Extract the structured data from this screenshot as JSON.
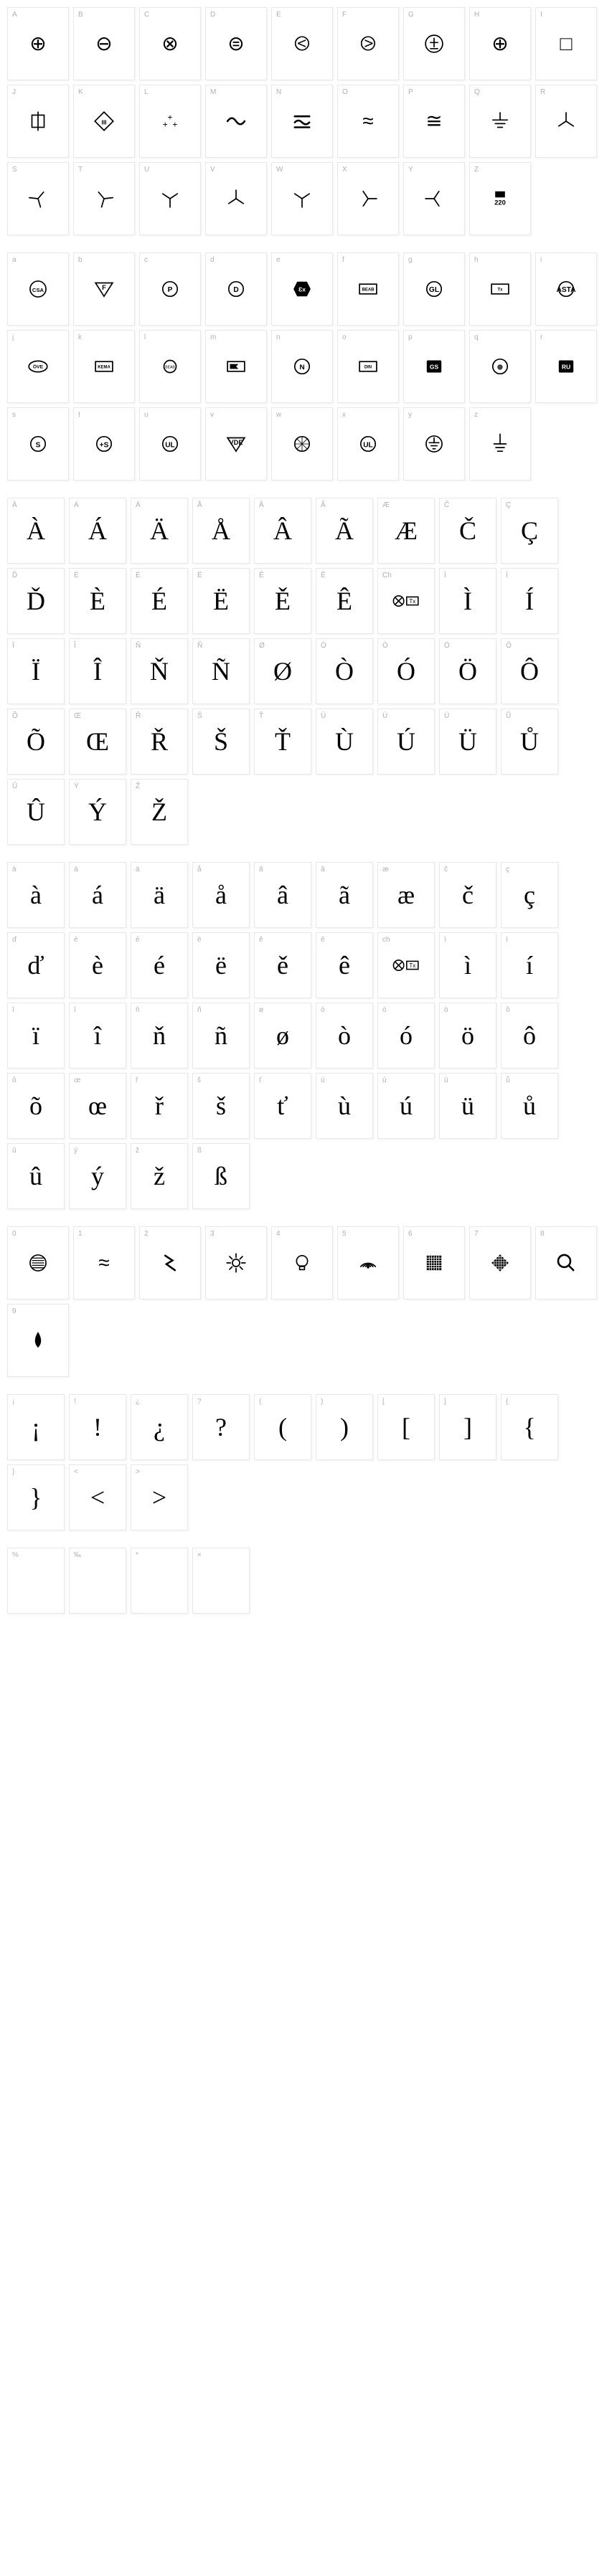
{
  "sections": [
    {
      "id": "uppercase-symbols",
      "cardSize": "small",
      "cards": [
        {
          "label": "A",
          "glyph": "⊕",
          "type": "symbol"
        },
        {
          "label": "B",
          "glyph": "⊖",
          "type": "symbol"
        },
        {
          "label": "C",
          "glyph": "⊗",
          "type": "symbol"
        },
        {
          "label": "D",
          "glyph": "⊜",
          "type": "symbol"
        },
        {
          "label": "E",
          "glyph": "⧀",
          "type": "symbol"
        },
        {
          "label": "F",
          "glyph": "⧁",
          "type": "symbol"
        },
        {
          "label": "G",
          "glyph": "±",
          "type": "circled"
        },
        {
          "label": "H",
          "glyph": "⊕",
          "type": "symbol"
        },
        {
          "label": "I",
          "glyph": "□",
          "type": "symbol"
        },
        {
          "label": "J",
          "glyph": "⊞",
          "type": "box-line"
        },
        {
          "label": "K",
          "glyph": "◈",
          "type": "diamond"
        },
        {
          "label": "L",
          "glyph": "⁺⁺⁺",
          "type": "plus-cluster"
        },
        {
          "label": "M",
          "glyph": "∼",
          "type": "wave"
        },
        {
          "label": "N",
          "glyph": "≂",
          "type": "wave-bars"
        },
        {
          "label": "O",
          "glyph": "≈",
          "type": "symbol"
        },
        {
          "label": "P",
          "glyph": "≅",
          "type": "symbol"
        },
        {
          "label": "Q",
          "glyph": "⏚",
          "type": "ground"
        },
        {
          "label": "R",
          "glyph": "⅄",
          "type": "wye1"
        },
        {
          "label": "S",
          "glyph": "⅄",
          "type": "wye2"
        },
        {
          "label": "T",
          "glyph": "⅄",
          "type": "wye3"
        },
        {
          "label": "U",
          "glyph": "⅄",
          "type": "wye4"
        },
        {
          "label": "V",
          "glyph": "Y",
          "type": "tri"
        },
        {
          "label": "W",
          "glyph": "⅄",
          "type": "tri2"
        },
        {
          "label": "X",
          "glyph": "⅄",
          "type": "tri3"
        },
        {
          "label": "Y",
          "glyph": "≺",
          "type": "tri4"
        },
        {
          "label": "Z",
          "glyph": "220",
          "type": "label-220"
        }
      ]
    },
    {
      "id": "lowercase-badges",
      "cardSize": "small",
      "cards": [
        {
          "label": "a",
          "glyph": "CSA",
          "type": "badge"
        },
        {
          "label": "b",
          "glyph": "F",
          "type": "badge-tri"
        },
        {
          "label": "c",
          "glyph": "P",
          "type": "badge-circle"
        },
        {
          "label": "d",
          "glyph": "D",
          "type": "badge-circle"
        },
        {
          "label": "e",
          "glyph": "Ɛx",
          "type": "badge-hex"
        },
        {
          "label": "f",
          "glyph": "BEAB",
          "type": "badge-rect"
        },
        {
          "label": "g",
          "glyph": "GL",
          "type": "badge-circle"
        },
        {
          "label": "h",
          "glyph": "Tx",
          "type": "badge-rect"
        },
        {
          "label": "i",
          "glyph": "ASTA",
          "type": "badge-circle"
        },
        {
          "label": "j",
          "glyph": "ÖVE",
          "type": "badge-oval"
        },
        {
          "label": "k",
          "glyph": "KEMA",
          "type": "badge-rect"
        },
        {
          "label": "l",
          "glyph": "BEAB",
          "type": "badge-small"
        },
        {
          "label": "m",
          "glyph": "◣",
          "type": "badge-flag"
        },
        {
          "label": "n",
          "glyph": "N",
          "type": "badge-circle"
        },
        {
          "label": "o",
          "glyph": "DIN",
          "type": "badge-rect"
        },
        {
          "label": "p",
          "glyph": "GS",
          "type": "badge-black"
        },
        {
          "label": "q",
          "glyph": "⊕",
          "type": "badge-circle"
        },
        {
          "label": "r",
          "glyph": "RU",
          "type": "badge-black"
        },
        {
          "label": "s",
          "glyph": "S",
          "type": "badge-circle"
        },
        {
          "label": "t",
          "glyph": "+S",
          "type": "badge-circle"
        },
        {
          "label": "u",
          "glyph": "UL",
          "type": "badge-circle"
        },
        {
          "label": "v",
          "glyph": "VDE",
          "type": "badge-tri"
        },
        {
          "label": "w",
          "glyph": "⊛",
          "type": "badge-wheel"
        },
        {
          "label": "x",
          "glyph": "UL",
          "type": "badge-circle"
        },
        {
          "label": "y",
          "glyph": "⏚",
          "type": "badge-ground"
        },
        {
          "label": "z",
          "glyph": "⏚",
          "type": "ground-alt"
        }
      ]
    },
    {
      "id": "accented-upper",
      "cardSize": "wide",
      "cards": [
        {
          "label": "À",
          "glyph": "À"
        },
        {
          "label": "Á",
          "glyph": "Á"
        },
        {
          "label": "Ä",
          "glyph": "Ä"
        },
        {
          "label": "Å",
          "glyph": "Å"
        },
        {
          "label": "Â",
          "glyph": "Â"
        },
        {
          "label": "Ã",
          "glyph": "Ã"
        },
        {
          "label": "Æ",
          "glyph": "Æ"
        },
        {
          "label": "Č",
          "glyph": "Č"
        },
        {
          "label": "Ç",
          "glyph": "Ç"
        },
        {
          "label": "Ď",
          "glyph": "Ď"
        },
        {
          "label": "È",
          "glyph": "È"
        },
        {
          "label": "É",
          "glyph": "É"
        },
        {
          "label": "Ë",
          "glyph": "Ë"
        },
        {
          "label": "Ě",
          "glyph": "Ě"
        },
        {
          "label": "Ê",
          "glyph": "Ê"
        },
        {
          "label": "Ch",
          "glyph": "⊗Tx",
          "type": "combo"
        },
        {
          "label": "Ì",
          "glyph": "Ì"
        },
        {
          "label": "Í",
          "glyph": "Í"
        },
        {
          "label": "Ï",
          "glyph": "Ï"
        },
        {
          "label": "Î",
          "glyph": "Î"
        },
        {
          "label": "Ň",
          "glyph": "Ň"
        },
        {
          "label": "Ñ",
          "glyph": "Ñ"
        },
        {
          "label": "Ø",
          "glyph": "Ø"
        },
        {
          "label": "Ò",
          "glyph": "Ò"
        },
        {
          "label": "Ó",
          "glyph": "Ó"
        },
        {
          "label": "Ö",
          "glyph": "Ö"
        },
        {
          "label": "Ô",
          "glyph": "Ô"
        },
        {
          "label": "Õ",
          "glyph": "Õ"
        },
        {
          "label": "Œ",
          "glyph": "Œ"
        },
        {
          "label": "Ř",
          "glyph": "Ř"
        },
        {
          "label": "Š",
          "glyph": "Š"
        },
        {
          "label": "Ť",
          "glyph": "Ť"
        },
        {
          "label": "Ù",
          "glyph": "Ù"
        },
        {
          "label": "Ú",
          "glyph": "Ú"
        },
        {
          "label": "Ü",
          "glyph": "Ü"
        },
        {
          "label": "Ů",
          "glyph": "Ů"
        },
        {
          "label": "Û",
          "glyph": "Û"
        },
        {
          "label": "Ý",
          "glyph": "Ý"
        },
        {
          "label": "Ž",
          "glyph": "Ž"
        }
      ]
    },
    {
      "id": "accented-lower",
      "cardSize": "wide",
      "cards": [
        {
          "label": "à",
          "glyph": "à"
        },
        {
          "label": "á",
          "glyph": "á"
        },
        {
          "label": "ä",
          "glyph": "ä"
        },
        {
          "label": "å",
          "glyph": "å"
        },
        {
          "label": "â",
          "glyph": "â"
        },
        {
          "label": "ã",
          "glyph": "ã"
        },
        {
          "label": "æ",
          "glyph": "æ"
        },
        {
          "label": "č",
          "glyph": "č"
        },
        {
          "label": "ç",
          "glyph": "ç"
        },
        {
          "label": "ď",
          "glyph": "ď"
        },
        {
          "label": "è",
          "glyph": "è"
        },
        {
          "label": "é",
          "glyph": "é"
        },
        {
          "label": "ë",
          "glyph": "ë"
        },
        {
          "label": "ě",
          "glyph": "ě"
        },
        {
          "label": "ê",
          "glyph": "ê"
        },
        {
          "label": "ch",
          "glyph": "ⓅTx",
          "type": "combo"
        },
        {
          "label": "ì",
          "glyph": "ì"
        },
        {
          "label": "í",
          "glyph": "í"
        },
        {
          "label": "ï",
          "glyph": "ï"
        },
        {
          "label": "î",
          "glyph": "î"
        },
        {
          "label": "ň",
          "glyph": "ň"
        },
        {
          "label": "ñ",
          "glyph": "ñ"
        },
        {
          "label": "ø",
          "glyph": "ø"
        },
        {
          "label": "ò",
          "glyph": "ò"
        },
        {
          "label": "ó",
          "glyph": "ó"
        },
        {
          "label": "ö",
          "glyph": "ö"
        },
        {
          "label": "ô",
          "glyph": "ô"
        },
        {
          "label": "õ",
          "glyph": "õ"
        },
        {
          "label": "œ",
          "glyph": "œ"
        },
        {
          "label": "ř",
          "glyph": "ř"
        },
        {
          "label": "š",
          "glyph": "š"
        },
        {
          "label": "ť",
          "glyph": "ť"
        },
        {
          "label": "ù",
          "glyph": "ù"
        },
        {
          "label": "ú",
          "glyph": "ú"
        },
        {
          "label": "ü",
          "glyph": "ü"
        },
        {
          "label": "ů",
          "glyph": "ů"
        },
        {
          "label": "û",
          "glyph": "û"
        },
        {
          "label": "ý",
          "glyph": "ý"
        },
        {
          "label": "ž",
          "glyph": "ž"
        },
        {
          "label": "ß",
          "glyph": "ß"
        }
      ]
    },
    {
      "id": "numbers",
      "cardSize": "small",
      "cards": [
        {
          "label": "0",
          "glyph": "⊜",
          "type": "circled-lines"
        },
        {
          "label": "1",
          "glyph": "≈",
          "type": "symbol"
        },
        {
          "label": "2",
          "glyph": "↯",
          "type": "zigzag"
        },
        {
          "label": "3",
          "glyph": "☀",
          "type": "sun"
        },
        {
          "label": "4",
          "glyph": "💡",
          "type": "bulb"
        },
        {
          "label": "5",
          "glyph": "📶",
          "type": "wifi"
        },
        {
          "label": "6",
          "glyph": "▦",
          "type": "grid"
        },
        {
          "label": "7",
          "glyph": "◈",
          "type": "diamond-fill"
        },
        {
          "label": "8",
          "glyph": "🔍",
          "type": "magnify"
        },
        {
          "label": "9",
          "glyph": "💧",
          "type": "drop"
        }
      ]
    },
    {
      "id": "punctuation",
      "cardSize": "wide",
      "cards": [
        {
          "label": "¡",
          "glyph": "¡"
        },
        {
          "label": "!",
          "glyph": "!"
        },
        {
          "label": "¿",
          "glyph": "¿"
        },
        {
          "label": "?",
          "glyph": "?"
        },
        {
          "label": "(",
          "glyph": "("
        },
        {
          "label": ")",
          "glyph": ")"
        },
        {
          "label": "[",
          "glyph": "["
        },
        {
          "label": "]",
          "glyph": "]"
        },
        {
          "label": "{",
          "glyph": "{"
        },
        {
          "label": "}",
          "glyph": "}"
        },
        {
          "label": "<",
          "glyph": "<"
        },
        {
          "label": ">",
          "glyph": ">"
        }
      ]
    },
    {
      "id": "punctuation2",
      "cardSize": "wide",
      "cards": [
        {
          "label": "%",
          "glyph": ""
        },
        {
          "label": "‰",
          "glyph": ""
        },
        {
          "label": "*",
          "glyph": ""
        },
        {
          "label": "×",
          "glyph": ""
        }
      ]
    }
  ],
  "colors": {
    "background": "#ffffff",
    "card_bg": "#ffffff",
    "card_border": "#e8e8e8",
    "label": "#b0b0b0",
    "glyph": "#000000"
  }
}
